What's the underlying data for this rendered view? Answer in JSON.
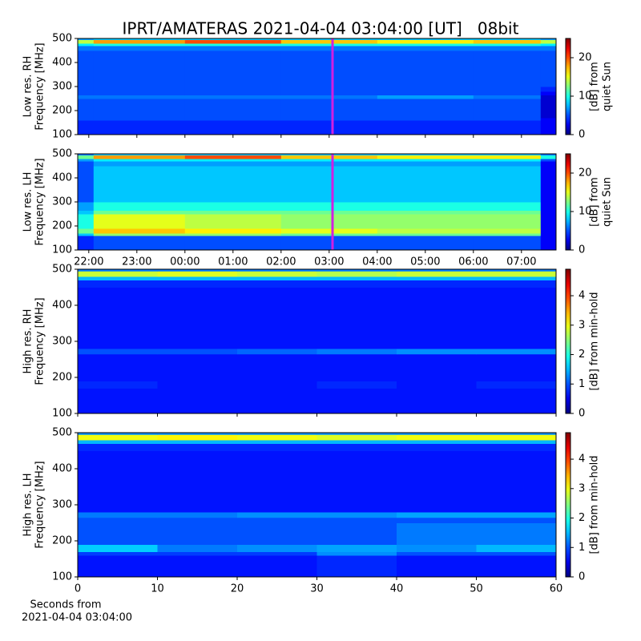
{
  "title": "IPRT/AMATERAS 2021-04-04 03:04:00 [UT]   08bit",
  "chart_data": [
    {
      "type": "heatmap",
      "ylabel": [
        "Low res. RH",
        "Frequency [MHz]"
      ],
      "colorbar_label": [
        "[dB] from",
        "quiet Sun"
      ],
      "clim": [
        0,
        25
      ],
      "cticks": [
        0,
        10,
        20
      ],
      "xlim": [
        21.77,
        31.72
      ],
      "xticks": [
        22,
        23,
        24,
        25,
        26,
        27,
        28,
        29,
        30,
        31
      ],
      "tick_labels": false,
      "ylim": [
        100,
        500
      ],
      "yticks": [
        100,
        200,
        300,
        400,
        500
      ],
      "marker": {
        "x": 27.07,
        "color": "#d020e0"
      },
      "x_edges": [
        21.77,
        22.1,
        24,
        26,
        28,
        30,
        31.4,
        31.72
      ],
      "y_edges": [
        100,
        160,
        170,
        190,
        250,
        265,
        280,
        300,
        450,
        470,
        480,
        495,
        500
      ],
      "values": [
        [
          4,
          4,
          4,
          4,
          4,
          4,
          3
        ],
        [
          5,
          5,
          5,
          5,
          5,
          5,
          3
        ],
        [
          5,
          5,
          5,
          5,
          5,
          5,
          2
        ],
        [
          5,
          5,
          5,
          5,
          5,
          5,
          2
        ],
        [
          6,
          6,
          6,
          6,
          7,
          6,
          2
        ],
        [
          5,
          5,
          5,
          5,
          5,
          5,
          3
        ],
        [
          5,
          5,
          5,
          5,
          5,
          5,
          4
        ],
        [
          5,
          5,
          5,
          5,
          5,
          5,
          5
        ],
        [
          6,
          6,
          6,
          6,
          6,
          6,
          6
        ],
        [
          9,
          10,
          10,
          10,
          10,
          10,
          9
        ],
        [
          14,
          18,
          20,
          17,
          16,
          17,
          14
        ],
        [
          7,
          8,
          8,
          8,
          8,
          8,
          7
        ]
      ]
    },
    {
      "type": "heatmap",
      "ylabel": [
        "Low res. LH",
        "Frequency [MHz]"
      ],
      "colorbar_label": [
        "[dB] from",
        "quiet Sun"
      ],
      "clim": [
        0,
        25
      ],
      "cticks": [
        0,
        10,
        20
      ],
      "xlim": [
        21.77,
        31.72
      ],
      "xticks": [
        {
          "value": 22,
          "label": "22:00"
        },
        {
          "value": 23,
          "label": "23:00"
        },
        {
          "value": 24,
          "label": "00:00"
        },
        {
          "value": 25,
          "label": "01:00"
        },
        {
          "value": 26,
          "label": "02:00"
        },
        {
          "value": 27,
          "label": "03:00"
        },
        {
          "value": 28,
          "label": "04:00"
        },
        {
          "value": 29,
          "label": "05:00"
        },
        {
          "value": 30,
          "label": "06:00"
        },
        {
          "value": 31,
          "label": "07:00"
        }
      ],
      "ylim": [
        100,
        500
      ],
      "yticks": [
        100,
        200,
        300,
        400,
        500
      ],
      "marker": {
        "x": 27.07,
        "color": "#d020e0"
      },
      "x_edges": [
        21.77,
        22.1,
        24,
        26,
        28,
        30,
        31.4,
        31.72
      ],
      "y_edges": [
        100,
        160,
        170,
        190,
        250,
        265,
        280,
        300,
        450,
        470,
        480,
        495,
        500
      ],
      "values": [
        [
          4,
          5,
          5,
          5,
          5,
          5,
          3
        ],
        [
          8,
          13,
          13,
          12,
          12,
          12,
          3
        ],
        [
          12,
          17,
          16,
          15,
          14,
          14,
          3
        ],
        [
          10,
          15,
          14,
          13,
          13,
          13,
          3
        ],
        [
          8,
          12,
          12,
          12,
          12,
          12,
          3
        ],
        [
          7,
          10,
          10,
          10,
          10,
          10,
          3
        ],
        [
          7,
          10,
          10,
          10,
          10,
          10,
          3
        ],
        [
          5,
          8,
          8,
          8,
          8,
          8,
          3
        ],
        [
          5,
          7,
          7,
          7,
          7,
          7,
          3
        ],
        [
          7,
          9,
          9,
          9,
          9,
          9,
          5
        ],
        [
          12,
          18,
          20,
          17,
          16,
          16,
          10
        ],
        [
          6,
          8,
          8,
          8,
          8,
          8,
          6
        ]
      ]
    },
    {
      "type": "heatmap",
      "ylabel": [
        "High res. RH",
        "Frequency [MHz]"
      ],
      "colorbar_label": [
        "[dB] from min-hold"
      ],
      "clim": [
        0,
        4.9
      ],
      "cticks": [
        0,
        1,
        2,
        3,
        4
      ],
      "xlim": [
        0,
        60
      ],
      "xticks": [
        0,
        10,
        20,
        30,
        40,
        50,
        60
      ],
      "tick_labels": false,
      "ylim": [
        100,
        500
      ],
      "yticks": [
        100,
        200,
        300,
        400,
        500
      ],
      "x_edges": [
        0,
        10,
        20,
        30,
        40,
        50,
        60
      ],
      "y_edges": [
        100,
        160,
        170,
        190,
        250,
        265,
        280,
        300,
        450,
        470,
        480,
        495,
        500
      ],
      "values": [
        [
          0.7,
          0.7,
          0.7,
          0.7,
          0.7,
          0.7
        ],
        [
          0.7,
          0.7,
          0.7,
          0.7,
          0.7,
          0.7
        ],
        [
          0.8,
          0.7,
          0.7,
          0.8,
          0.7,
          0.8
        ],
        [
          0.7,
          0.7,
          0.7,
          0.7,
          0.7,
          0.7
        ],
        [
          0.7,
          0.7,
          0.7,
          0.7,
          0.7,
          0.7
        ],
        [
          1.0,
          1.0,
          1.1,
          1.2,
          1.3,
          1.3
        ],
        [
          0.7,
          0.7,
          0.7,
          0.7,
          0.7,
          0.7
        ],
        [
          0.7,
          0.7,
          0.7,
          0.7,
          0.7,
          0.7
        ],
        [
          0.8,
          0.8,
          0.8,
          0.8,
          0.8,
          0.8
        ],
        [
          1.5,
          1.5,
          1.5,
          1.5,
          1.5,
          1.5
        ],
        [
          2.8,
          2.9,
          2.8,
          2.7,
          2.8,
          2.8
        ],
        [
          1.2,
          1.2,
          1.2,
          1.2,
          1.2,
          1.2
        ]
      ]
    },
    {
      "type": "heatmap",
      "ylabel": [
        "High res. LH",
        "Frequency [MHz]"
      ],
      "colorbar_label": [
        "[dB] from min-hold"
      ],
      "clim": [
        0,
        4.9
      ],
      "cticks": [
        0,
        1,
        2,
        3,
        4
      ],
      "xlim": [
        0,
        60
      ],
      "xticks": [
        0,
        10,
        20,
        30,
        40,
        50,
        60
      ],
      "xlabel": [
        "Seconds from",
        "2021-04-04 03:04:00"
      ],
      "ylim": [
        100,
        500
      ],
      "yticks": [
        100,
        200,
        300,
        400,
        500
      ],
      "x_edges": [
        0,
        10,
        20,
        30,
        40,
        50,
        60
      ],
      "y_edges": [
        100,
        160,
        170,
        190,
        250,
        265,
        280,
        300,
        450,
        470,
        480,
        495,
        500
      ],
      "values": [
        [
          0.7,
          0.7,
          0.7,
          0.8,
          0.7,
          0.7
        ],
        [
          0.9,
          0.9,
          0.9,
          1.3,
          1.0,
          1.0
        ],
        [
          1.6,
          1.2,
          1.3,
          1.4,
          1.3,
          1.5
        ],
        [
          1.0,
          1.0,
          1.0,
          1.0,
          1.2,
          1.2
        ],
        [
          1.0,
          1.0,
          1.0,
          1.0,
          1.0,
          1.0
        ],
        [
          1.2,
          1.2,
          1.3,
          1.3,
          1.4,
          1.4
        ],
        [
          0.7,
          0.7,
          0.7,
          0.7,
          0.7,
          0.7
        ],
        [
          0.7,
          0.7,
          0.7,
          0.7,
          0.7,
          0.7
        ],
        [
          0.8,
          0.8,
          0.8,
          0.8,
          0.8,
          0.8
        ],
        [
          1.5,
          1.5,
          1.5,
          1.5,
          1.5,
          1.5
        ],
        [
          3.0,
          3.1,
          3.0,
          2.9,
          3.0,
          3.0
        ],
        [
          1.3,
          1.3,
          1.3,
          1.3,
          1.3,
          1.3
        ]
      ]
    }
  ]
}
